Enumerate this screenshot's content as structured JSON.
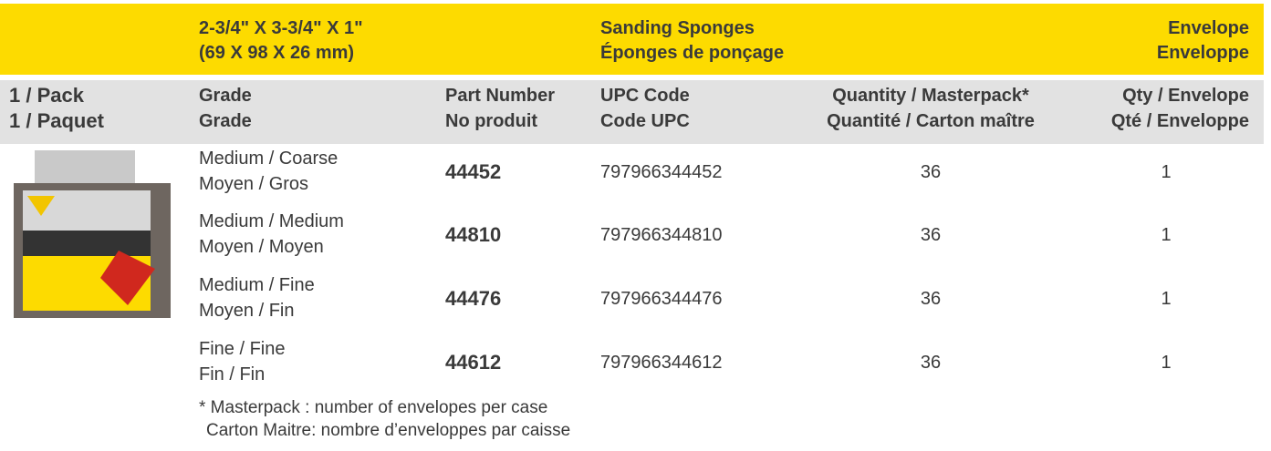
{
  "header": {
    "size": [
      "2-3/4\" X 3-3/4\" X 1\"",
      "(69 X 98 X 26 mm)"
    ],
    "title": [
      "Sanding Sponges",
      "Éponges de ponçage"
    ],
    "packaging": [
      "Envelope",
      "Enveloppe"
    ]
  },
  "columns": {
    "pack": [
      "1 / Pack",
      "1 / Paquet"
    ],
    "grade": [
      "Grade",
      "Grade"
    ],
    "part": [
      "Part Number",
      "No produit"
    ],
    "upc": [
      "UPC Code",
      "Code UPC"
    ],
    "masterpack": [
      "Quantity / Masterpack*",
      "Quantité / Carton maître"
    ],
    "envelope": [
      "Qty / Envelope",
      "Qté / Enveloppe"
    ]
  },
  "rows": [
    {
      "grade": [
        "Medium / Coarse",
        "Moyen / Gros"
      ],
      "part": "44452",
      "upc": "797966344452",
      "masterpack": 36,
      "envelope": 1
    },
    {
      "grade": [
        "Medium / Medium",
        "Moyen / Moyen"
      ],
      "part": "44810",
      "upc": "797966344810",
      "masterpack": 36,
      "envelope": 1
    },
    {
      "grade": [
        "Medium / Fine",
        "Moyen / Fin"
      ],
      "part": "44476",
      "upc": "797966344476",
      "masterpack": 36,
      "envelope": 1
    },
    {
      "grade": [
        "Fine / Fine",
        "Fin / Fin"
      ],
      "part": "44612",
      "upc": "797966344612",
      "masterpack": 36,
      "envelope": 1
    }
  ],
  "footnote": [
    "* Masterpack : number of envelopes per case",
    "Carton Maitre: nombre d’enveloppes par caisse"
  ]
}
